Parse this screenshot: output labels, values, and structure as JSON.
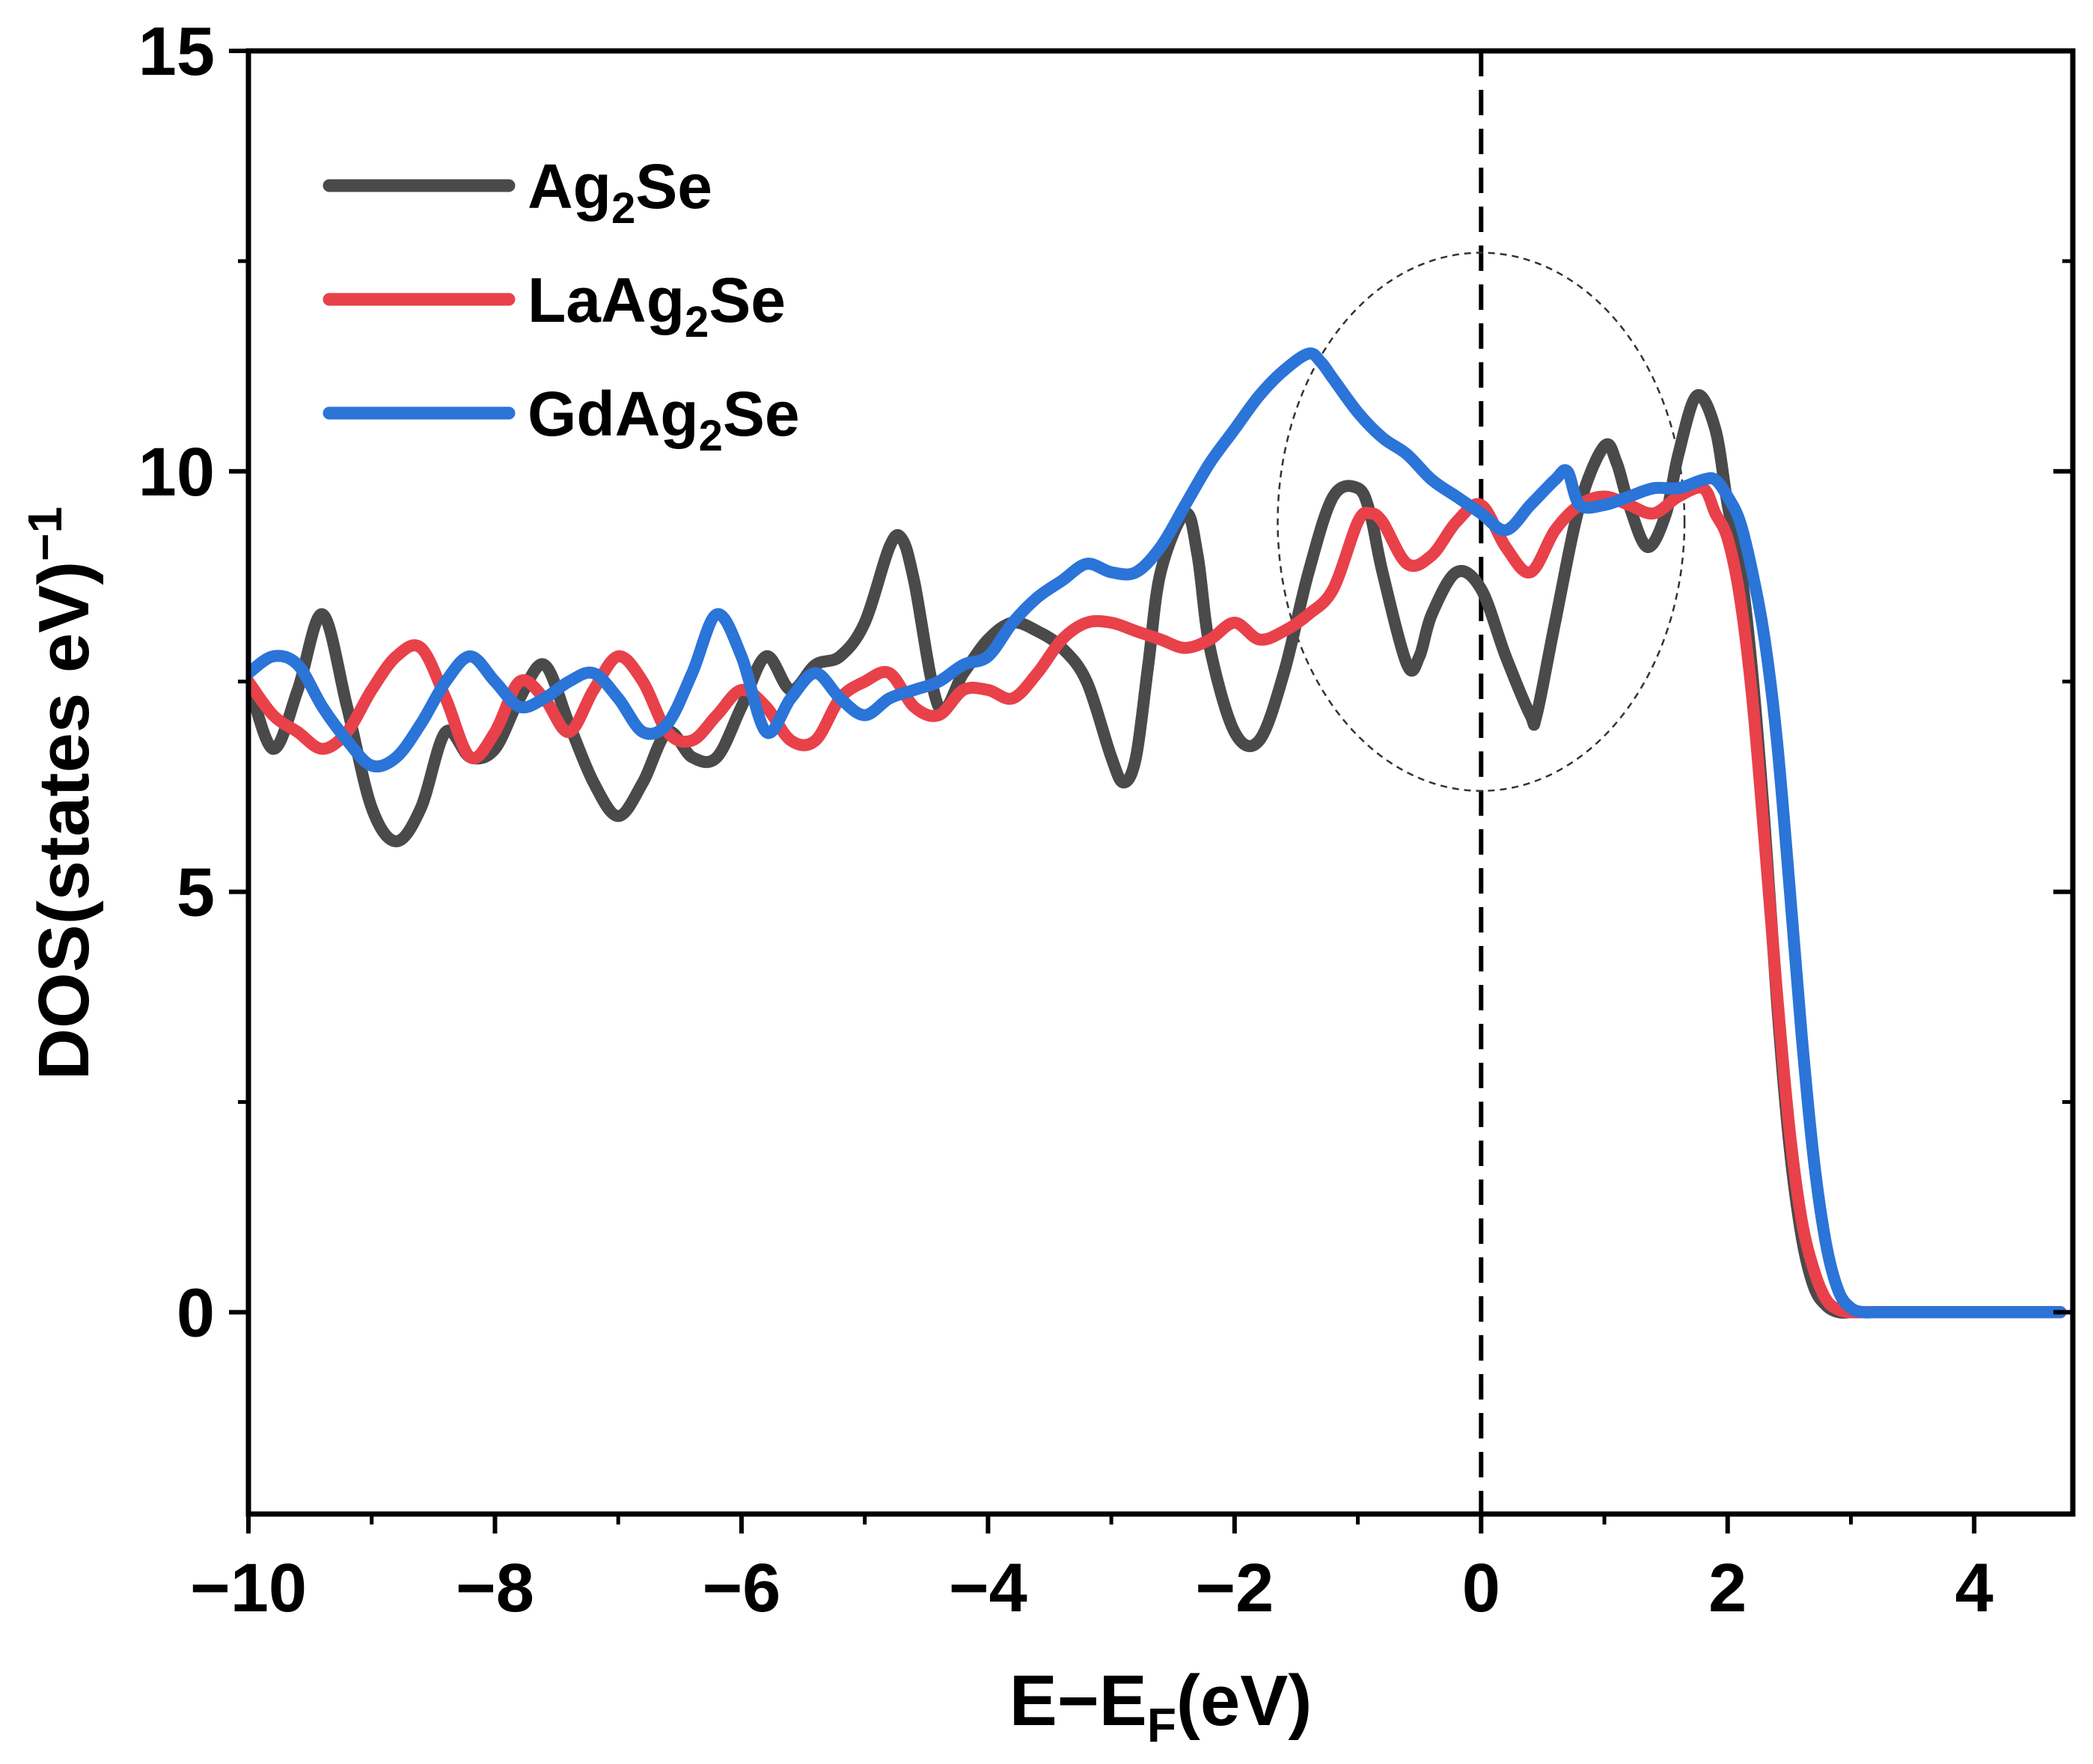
{
  "chart_data": {
    "type": "line",
    "xlabel": "E−E",
    "xlabel_sub": "F",
    "xlabel_tail": "(eV)",
    "ylabel": "DOS(states eV)",
    "ylabel_sup": "−1",
    "xlim": [
      -10,
      4.8
    ],
    "ylim": [
      -2.4,
      15
    ],
    "x_ticks": [
      -10,
      -8,
      -6,
      -4,
      -2,
      0,
      2,
      4
    ],
    "x_tick_labels": [
      "−10",
      "−8",
      "−6",
      "−4",
      "−2",
      "0",
      "2",
      "4"
    ],
    "y_ticks": [
      0,
      5,
      10,
      15
    ],
    "y_tick_labels": [
      "0",
      "5",
      "10",
      "15"
    ],
    "fermi_level": 0,
    "highlight_ellipse": {
      "cx": 0,
      "cy": 9.4,
      "rx": 1.65,
      "ry": 3.2
    },
    "legend_position": "top-left",
    "series": [
      {
        "name": "Ag2Se",
        "label_main": "Ag",
        "label_sub": "2",
        "label_tail": "Se",
        "color": "#4a4a4a",
        "x": [
          -10,
          -9.8,
          -9.6,
          -9.4,
          -9.2,
          -9.0,
          -8.8,
          -8.6,
          -8.4,
          -8.2,
          -8.0,
          -7.8,
          -7.6,
          -7.4,
          -7.2,
          -7.0,
          -6.8,
          -6.6,
          -6.4,
          -6.2,
          -6.0,
          -5.8,
          -5.6,
          -5.4,
          -5.2,
          -5.0,
          -4.8,
          -4.7,
          -4.6,
          -4.4,
          -4.2,
          -4.0,
          -3.8,
          -3.6,
          -3.4,
          -3.2,
          -3.0,
          -2.9,
          -2.8,
          -2.7,
          -2.6,
          -2.4,
          -2.3,
          -2.2,
          -2.0,
          -1.8,
          -1.6,
          -1.4,
          -1.2,
          -1.0,
          -0.9,
          -0.8,
          -0.6,
          -0.5,
          -0.4,
          -0.2,
          0.0,
          0.2,
          0.4,
          0.45,
          0.6,
          0.8,
          1.0,
          1.1,
          1.2,
          1.35,
          1.5,
          1.6,
          1.75,
          1.9,
          2.0,
          2.1,
          2.2,
          2.3,
          2.4,
          2.5,
          2.6,
          2.7,
          2.8,
          2.9,
          3.0,
          3.1,
          3.2,
          3.4,
          3.6,
          3.8,
          4.0,
          4.2,
          4.4,
          4.6,
          4.7
        ],
        "y": [
          7.5,
          6.7,
          7.4,
          8.3,
          7.2,
          6.0,
          5.6,
          6.0,
          6.9,
          6.6,
          6.7,
          7.3,
          7.7,
          7.0,
          6.3,
          5.9,
          6.3,
          6.9,
          6.6,
          6.6,
          7.2,
          7.8,
          7.4,
          7.7,
          7.8,
          8.2,
          9.1,
          9.2,
          8.7,
          7.2,
          7.6,
          8.0,
          8.2,
          8.1,
          7.9,
          7.5,
          6.6,
          6.3,
          6.6,
          7.7,
          8.8,
          9.5,
          9.0,
          7.9,
          6.9,
          6.8,
          7.6,
          8.8,
          9.7,
          9.8,
          9.5,
          8.8,
          7.7,
          7.8,
          8.3,
          8.8,
          8.6,
          7.8,
          7.1,
          7.1,
          8.2,
          9.6,
          10.3,
          10.1,
          9.6,
          9.1,
          9.5,
          10.2,
          10.9,
          10.5,
          9.6,
          8.9,
          7.6,
          5.8,
          3.7,
          2.0,
          0.9,
          0.3,
          0.08,
          0.0,
          0.0,
          0.0,
          0.0,
          0.0,
          0.0,
          0.0,
          0.0,
          0.0,
          0.0,
          0.0,
          0.0
        ]
      },
      {
        "name": "LaAg2Se",
        "label_main": "LaAg",
        "label_sub": "2",
        "label_tail": "Se",
        "color": "#e8414a",
        "x": [
          -10,
          -9.8,
          -9.6,
          -9.4,
          -9.2,
          -9.0,
          -8.8,
          -8.6,
          -8.4,
          -8.2,
          -8.0,
          -7.8,
          -7.6,
          -7.4,
          -7.2,
          -7.0,
          -6.8,
          -6.6,
          -6.4,
          -6.2,
          -6.0,
          -5.8,
          -5.6,
          -5.4,
          -5.2,
          -5.0,
          -4.8,
          -4.6,
          -4.4,
          -4.2,
          -4.0,
          -3.8,
          -3.6,
          -3.4,
          -3.2,
          -3.0,
          -2.8,
          -2.6,
          -2.4,
          -2.2,
          -2.0,
          -1.8,
          -1.6,
          -1.4,
          -1.2,
          -1.0,
          -0.9,
          -0.8,
          -0.6,
          -0.4,
          -0.2,
          0.0,
          0.2,
          0.4,
          0.6,
          0.8,
          1.0,
          1.2,
          1.4,
          1.6,
          1.8,
          1.9,
          2.0,
          2.1,
          2.2,
          2.3,
          2.4,
          2.5,
          2.6,
          2.7,
          2.8,
          2.9,
          3.0,
          3.1,
          3.2,
          3.4,
          3.6,
          3.8,
          4.0,
          4.2,
          4.4,
          4.6,
          4.7
        ],
        "y": [
          7.5,
          7.1,
          6.9,
          6.7,
          6.9,
          7.4,
          7.8,
          7.9,
          7.3,
          6.6,
          6.9,
          7.5,
          7.3,
          6.9,
          7.4,
          7.8,
          7.5,
          6.9,
          6.8,
          7.1,
          7.4,
          7.2,
          6.8,
          6.8,
          7.3,
          7.5,
          7.6,
          7.2,
          7.1,
          7.4,
          7.4,
          7.3,
          7.6,
          8.0,
          8.2,
          8.2,
          8.1,
          8.0,
          7.9,
          8.0,
          8.2,
          8.0,
          8.1,
          8.3,
          8.6,
          9.4,
          9.5,
          9.4,
          8.9,
          9.0,
          9.4,
          9.6,
          9.1,
          8.8,
          9.3,
          9.6,
          9.7,
          9.6,
          9.5,
          9.7,
          9.8,
          9.5,
          9.2,
          8.5,
          7.3,
          5.6,
          3.8,
          2.2,
          1.1,
          0.5,
          0.15,
          0.03,
          0.0,
          0.0,
          0.0,
          0.0,
          0.0,
          0.0,
          0.0,
          0.0,
          0.0,
          0.0,
          0.0
        ]
      },
      {
        "name": "GdAg2Se",
        "label_main": "GdAg",
        "label_sub": "2",
        "label_tail": "Se",
        "color": "#2b74d8",
        "x": [
          -10,
          -9.8,
          -9.6,
          -9.4,
          -9.2,
          -9.0,
          -8.8,
          -8.6,
          -8.4,
          -8.2,
          -8.0,
          -7.8,
          -7.6,
          -7.4,
          -7.2,
          -7.0,
          -6.8,
          -6.6,
          -6.4,
          -6.2,
          -6.0,
          -5.8,
          -5.6,
          -5.4,
          -5.2,
          -5.0,
          -4.8,
          -4.6,
          -4.4,
          -4.2,
          -4.0,
          -3.8,
          -3.6,
          -3.4,
          -3.2,
          -3.0,
          -2.8,
          -2.6,
          -2.4,
          -2.2,
          -2.0,
          -1.8,
          -1.6,
          -1.4,
          -1.3,
          -1.2,
          -1.0,
          -0.8,
          -0.6,
          -0.4,
          -0.2,
          0.0,
          0.2,
          0.4,
          0.6,
          0.7,
          0.8,
          1.0,
          1.2,
          1.4,
          1.6,
          1.8,
          1.9,
          2.0,
          2.1,
          2.2,
          2.3,
          2.4,
          2.5,
          2.6,
          2.7,
          2.8,
          2.9,
          3.0,
          3.1,
          3.2,
          3.4,
          3.6,
          3.8,
          4.0,
          4.2,
          4.4,
          4.6,
          4.7
        ],
        "y": [
          7.6,
          7.8,
          7.7,
          7.2,
          6.8,
          6.5,
          6.6,
          7.0,
          7.5,
          7.8,
          7.5,
          7.2,
          7.3,
          7.5,
          7.6,
          7.3,
          6.9,
          7.0,
          7.6,
          8.3,
          7.8,
          6.9,
          7.3,
          7.6,
          7.3,
          7.1,
          7.3,
          7.4,
          7.5,
          7.7,
          7.8,
          8.2,
          8.5,
          8.7,
          8.9,
          8.8,
          8.8,
          9.1,
          9.6,
          10.1,
          10.5,
          10.9,
          11.2,
          11.4,
          11.3,
          11.1,
          10.7,
          10.4,
          10.2,
          9.9,
          9.7,
          9.5,
          9.3,
          9.6,
          9.9,
          10.0,
          9.6,
          9.6,
          9.7,
          9.8,
          9.8,
          9.9,
          9.9,
          9.7,
          9.4,
          8.8,
          8.0,
          6.8,
          5.1,
          3.3,
          1.8,
          0.8,
          0.25,
          0.05,
          0.0,
          0.0,
          0.0,
          0.0,
          0.0,
          0.0,
          0.0,
          0.0,
          0.0,
          0.0
        ]
      }
    ]
  }
}
